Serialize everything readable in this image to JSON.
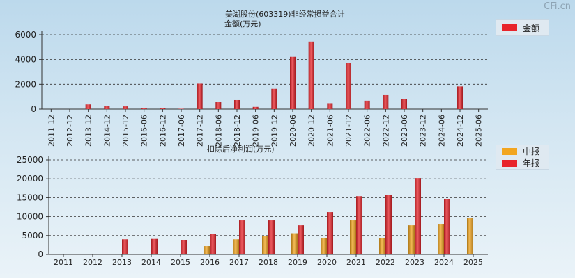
{
  "watermark": "CFi.cn",
  "chart_data": [
    {
      "type": "bar",
      "title": "美湖股份(603319)非经常损益合计",
      "subtitle": "金额(万元)",
      "ylim": [
        0,
        6000
      ],
      "yticks": [
        0,
        2000,
        4000,
        6000
      ],
      "grid": true,
      "legend_position": "top-right",
      "categories": [
        "2011-12",
        "2012-12",
        "2013-12",
        "2014-12",
        "2015-12",
        "2016-06",
        "2016-12",
        "2017-06",
        "2017-12",
        "2018-06",
        "2018-12",
        "2019-06",
        "2019-12",
        "2020-06",
        "2020-12",
        "2021-06",
        "2021-12",
        "2022-06",
        "2022-12",
        "2023-06",
        "2023-12",
        "2024-06",
        "2024-12",
        "2025-06"
      ],
      "series": [
        {
          "name": "金额",
          "color": "#e8242b",
          "values": [
            0,
            0,
            380,
            260,
            220,
            90,
            100,
            30,
            2050,
            560,
            730,
            180,
            1640,
            4220,
            5450,
            480,
            3720,
            680,
            1180,
            790,
            0,
            0,
            1830,
            0
          ]
        }
      ]
    },
    {
      "type": "bar",
      "title": "扣除后净利润(万元)",
      "ylim": [
        0,
        25000
      ],
      "yticks": [
        0,
        5000,
        10000,
        15000,
        20000,
        25000
      ],
      "grid": true,
      "legend_position": "top-right",
      "categories": [
        "2011",
        "2012",
        "2013",
        "2014",
        "2015",
        "2016",
        "2017",
        "2018",
        "2019",
        "2020",
        "2021",
        "2022",
        "2023",
        "2024",
        "2025"
      ],
      "series": [
        {
          "name": "中报",
          "color": "#f2a51f",
          "values": [
            0,
            0,
            0,
            0,
            0,
            2200,
            4000,
            4900,
            5600,
            4400,
            9000,
            4300,
            7700,
            7900,
            9700
          ]
        },
        {
          "name": "年报",
          "color": "#e8242b",
          "values": [
            0,
            0,
            4000,
            4100,
            3700,
            5500,
            9000,
            9000,
            7700,
            11200,
            15400,
            15800,
            20200,
            14700,
            0
          ]
        }
      ]
    }
  ]
}
